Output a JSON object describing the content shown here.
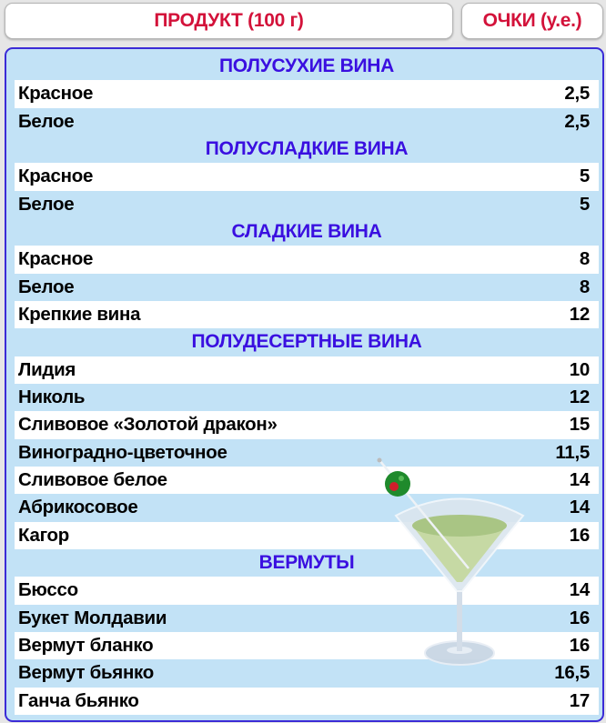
{
  "header": {
    "product_label": "ПРОДУКТ (100 г)",
    "points_label": "ОЧКИ (у.е.)"
  },
  "sections": [
    {
      "title": "ПОЛУСУХИЕ ВИНА",
      "items": [
        {
          "name": "Красное",
          "points": "2,5"
        },
        {
          "name": "Белое",
          "points": "2,5"
        }
      ]
    },
    {
      "title": "ПОЛУСЛАДКИЕ ВИНА",
      "items": [
        {
          "name": "Красное",
          "points": "5"
        },
        {
          "name": "Белое",
          "points": "5"
        }
      ]
    },
    {
      "title": "СЛАДКИЕ ВИНА",
      "items": [
        {
          "name": "Красное",
          "points": "8"
        },
        {
          "name": "Белое",
          "points": "8"
        },
        {
          "name": "Крепкие вина",
          "points": "12"
        }
      ]
    },
    {
      "title": "ПОЛУДЕСЕРТНЫЕ ВИНА",
      "items": [
        {
          "name": "Лидия",
          "points": "10"
        },
        {
          "name": "Николь",
          "points": "12"
        },
        {
          "name": "Сливовое «Золотой дракон»",
          "points": "15"
        },
        {
          "name": "Виноградно-цветочное",
          "points": "11,5"
        },
        {
          "name": "Сливовое белое",
          "points": "14"
        },
        {
          "name": "Абрикосовое",
          "points": "14"
        },
        {
          "name": "Кагор",
          "points": "16"
        }
      ]
    },
    {
      "title": "ВЕРМУТЫ",
      "items": [
        {
          "name": "Бюссо",
          "points": "14"
        },
        {
          "name": "Букет Молдавии",
          "points": "16"
        },
        {
          "name": "Вермут бланко",
          "points": "16"
        },
        {
          "name": "Вермут бьянко",
          "points": "16,5"
        },
        {
          "name": "Ганча бьянко",
          "points": "17"
        }
      ]
    }
  ],
  "colors": {
    "header_text": "#d3123a",
    "section_text": "#3a0fe0",
    "panel_bg": "#c2e2f6",
    "panel_border": "#3b2bd6"
  },
  "illustration": "martini-glass-with-olive"
}
